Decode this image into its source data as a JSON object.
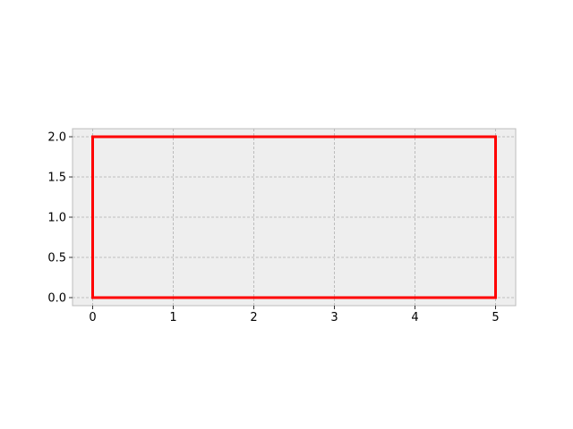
{
  "chart_data": {
    "type": "line",
    "title": "",
    "xlabel": "",
    "ylabel": "",
    "xlim": [
      -0.25,
      5.25
    ],
    "ylim": [
      -0.1,
      2.1
    ],
    "x_ticks": [
      0,
      1,
      2,
      3,
      4,
      5
    ],
    "x_tick_labels": [
      "0",
      "1",
      "2",
      "3",
      "4",
      "5"
    ],
    "y_ticks": [
      0.0,
      0.5,
      1.0,
      1.5,
      2.0
    ],
    "y_tick_labels": [
      "0.0",
      "0.5",
      "1.0",
      "1.5",
      "2.0"
    ],
    "grid": true,
    "equal_aspect": true,
    "series": [
      {
        "color": "#ff0000",
        "x": [
          0,
          5,
          5,
          0,
          0
        ],
        "y": [
          0,
          0,
          2,
          2,
          0
        ]
      }
    ]
  },
  "style": {
    "axes_background": "#eeeeee",
    "axes_edge": "#bcbcbc",
    "grid_color": "#b0b0b0"
  }
}
